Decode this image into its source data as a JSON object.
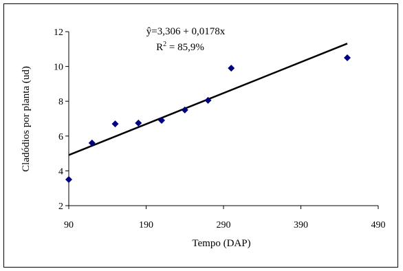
{
  "chart_data": {
    "type": "scatter",
    "xlabel": "Tempo (DAP)",
    "ylabel": "Cladódios por planta (ud)",
    "xlim": [
      90,
      490
    ],
    "ylim": [
      2,
      12
    ],
    "xticks": [
      90,
      190,
      290,
      390,
      490
    ],
    "yticks": [
      2,
      4,
      6,
      8,
      10,
      12
    ],
    "grid": false,
    "series": [
      {
        "points": [
          {
            "x": 90,
            "y": 3.5
          },
          {
            "x": 120,
            "y": 5.6
          },
          {
            "x": 150,
            "y": 6.7
          },
          {
            "x": 180,
            "y": 6.75
          },
          {
            "x": 210,
            "y": 6.9
          },
          {
            "x": 240,
            "y": 7.5
          },
          {
            "x": 270,
            "y": 8.05
          },
          {
            "x": 300,
            "y": 9.9
          },
          {
            "x": 450,
            "y": 10.5
          }
        ],
        "color": "#000080",
        "marker": "diamond"
      }
    ],
    "trendline": {
      "intercept": 3.306,
      "slope": 0.0178,
      "x_range": [
        90,
        450
      ],
      "color": "#000000"
    },
    "annotations": {
      "equation": "ŷ=3,306 + 0,0178x",
      "r2_prefix": "R",
      "r2_sup": "2",
      "r2_suffix": " = 85,9%"
    }
  }
}
